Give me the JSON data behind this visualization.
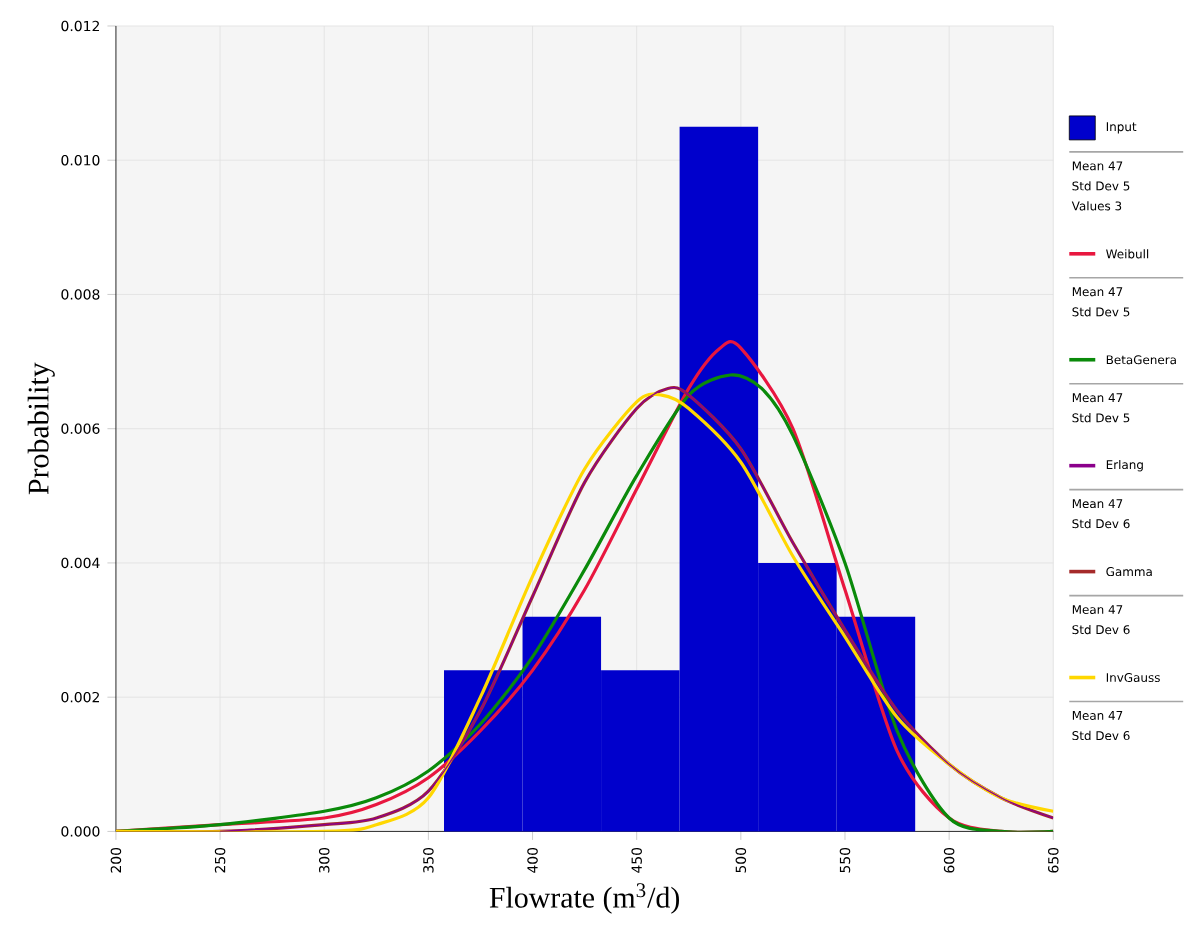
{
  "chart_data": {
    "type": "histogram",
    "xlabel": "Flowrate (m$^{3}$/d)",
    "ylabel": "Probability",
    "bins": [
      357.5,
      395.2,
      432.9,
      470.6,
      508.3,
      546,
      583.7
    ],
    "series": [
      {
        "name": "Input",
        "color": "#0000cc",
        "values": [
          0.0024,
          0.0032,
          0.0024,
          0.0105,
          0.004,
          0.0032
        ]
      },
      {
        "name": "Weibull",
        "type": "line",
        "color": "#e8173f",
        "x": [
          200,
          250,
          300,
          325,
          350,
          375,
          400,
          425,
          450,
          475,
          490,
          500,
          525,
          550,
          575,
          600,
          625,
          650
        ],
        "values": [
          0,
          0.0001,
          0.0002,
          0.0004,
          0.0008,
          0.0015,
          0.0024,
          0.0036,
          0.0051,
          0.0066,
          0.0072,
          0.0072,
          0.006,
          0.0036,
          0.0012,
          0.0002,
          0,
          0
        ]
      },
      {
        "name": "BetaGenera",
        "type": "line",
        "color": "#0a8a0a",
        "x": [
          200,
          250,
          300,
          325,
          350,
          375,
          400,
          425,
          450,
          475,
          495,
          510,
          525,
          550,
          575,
          600,
          625,
          650
        ],
        "values": [
          0,
          0.0001,
          0.0003,
          0.0005,
          0.0009,
          0.0016,
          0.0026,
          0.0039,
          0.0053,
          0.0065,
          0.0068,
          0.0066,
          0.0059,
          0.004,
          0.0015,
          0.0002,
          0,
          0
        ]
      },
      {
        "name": "Erlang",
        "type": "line",
        "color": "#8b008b",
        "x": [
          250,
          300,
          325,
          350,
          375,
          400,
          425,
          450,
          465,
          475,
          500,
          525,
          550,
          575,
          600,
          625,
          650
        ],
        "values": [
          0,
          0.0001,
          0.0002,
          0.0006,
          0.0018,
          0.0035,
          0.0052,
          0.0063,
          0.0066,
          0.0065,
          0.0057,
          0.0043,
          0.003,
          0.0018,
          0.001,
          0.0005,
          0.0002
        ]
      },
      {
        "name": "Gamma",
        "type": "line",
        "color": "#a52a2a",
        "x": [
          200,
          250,
          300,
          325,
          350,
          375,
          400,
          425,
          450,
          465,
          475,
          500,
          525,
          550,
          575,
          600,
          625,
          650
        ],
        "values": [
          0,
          0,
          0.0001,
          0.0002,
          0.0006,
          0.0018,
          0.0035,
          0.0052,
          0.0063,
          0.0066,
          0.0065,
          0.0057,
          0.0043,
          0.003,
          0.0018,
          0.001,
          0.0005,
          0.0002
        ]
      },
      {
        "name": "InvGauss",
        "type": "line",
        "color": "#ffd700",
        "x": [
          200,
          300,
          325,
          350,
          375,
          400,
          425,
          450,
          462,
          475,
          500,
          525,
          550,
          575,
          600,
          625,
          650
        ],
        "values": [
          0,
          0,
          0.0001,
          0.0005,
          0.002,
          0.0038,
          0.0054,
          0.0064,
          0.0065,
          0.0063,
          0.0055,
          0.0041,
          0.0029,
          0.0017,
          0.001,
          0.0005,
          0.0003
        ]
      }
    ],
    "xlim": [
      200,
      650
    ],
    "ylim": [
      0,
      0.012
    ],
    "xticks": [
      200,
      250,
      300,
      350,
      400,
      450,
      500,
      550,
      600,
      650
    ],
    "yticks": [
      {
        "value": 0,
        "label": "0.000"
      },
      {
        "value": 0.002,
        "label": "0.002"
      },
      {
        "value": 0.004,
        "label": "0.004"
      },
      {
        "value": 0.006,
        "label": "0.006"
      },
      {
        "value": 0.008,
        "label": "0.008"
      },
      {
        "value": 0.01,
        "label": "0.010"
      },
      {
        "value": 0.012,
        "label": "0.012"
      }
    ],
    "grid": true,
    "legend": "right",
    "annotations": [
      "Mean 47",
      "Std Dev 5",
      "Values 3",
      "Mean 47",
      "Std Dev 5",
      "Mean 47",
      "Std Dev 5",
      "Mean 47",
      "Std Dev 6",
      "Mean 47",
      "Std Dev 6",
      "Mean 47",
      "Std Dev 6"
    ]
  }
}
